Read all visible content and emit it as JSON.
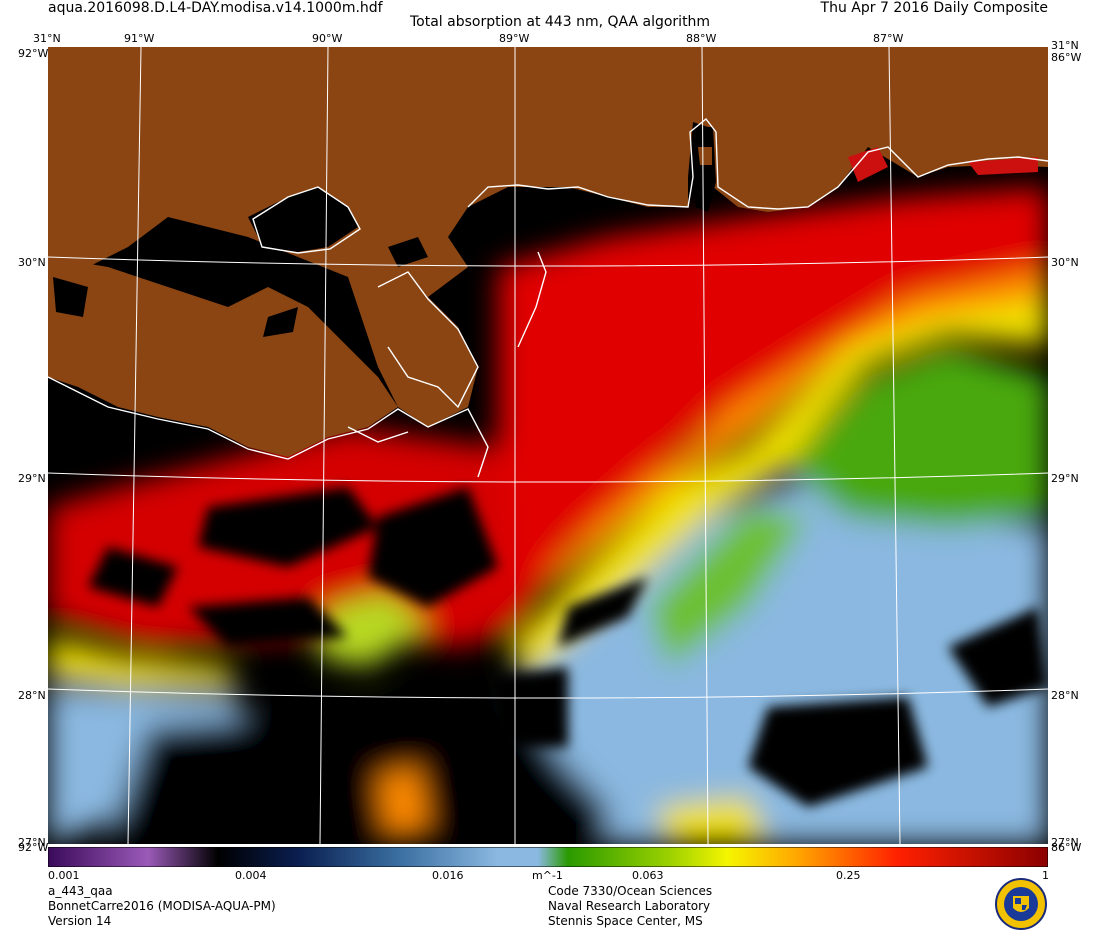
{
  "header": {
    "filename": "aqua.2016098.D.L4-DAY.modisa.v14.1000m.hdf",
    "title": "Total absorption at 443 nm, QAA algorithm",
    "date": "Thu Apr  7 2016 Daily Composite"
  },
  "grid": {
    "lon_labels": [
      "91°W",
      "90°W",
      "89°W",
      "88°W",
      "87°W"
    ],
    "lat_labels": [
      "30°N",
      "29°N",
      "28°N"
    ],
    "corner_top_lat": "31°N",
    "corner_top_lon_left": "92°W",
    "corner_top_lon_right": "86°W",
    "corner_bottom_lat": "27°N",
    "corner_bottom_lon_left": "92°W",
    "corner_bottom_lon_right": "86°W"
  },
  "colorbar": {
    "ticks": [
      "0.001",
      "0.004",
      "0.016",
      "0.063",
      "0.25",
      "1"
    ],
    "unit": "m^-1"
  },
  "footer": {
    "product": "a_443_qaa",
    "project": "BonnetCarre2016 (MODISA-AQUA-PM)",
    "version": "Version 14",
    "org_line1": "Code 7330/Ocean Sciences",
    "org_line2": "Naval Research Laboratory",
    "org_line3": "Stennis Space Center, MS"
  },
  "colors": {
    "land": "#8b4513",
    "nodata": "#000000",
    "coast": "#ffffff",
    "high": "#d40000",
    "mid": "#f5e600",
    "low_green": "#4aa80e",
    "low_blue": "#8ab8e0"
  }
}
